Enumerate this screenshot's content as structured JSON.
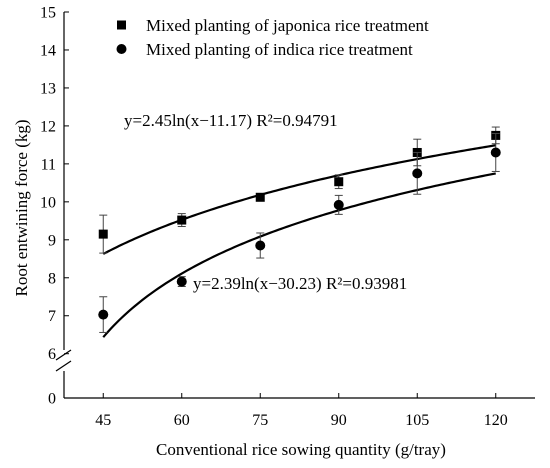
{
  "chart_data": {
    "type": "scatter",
    "xlabel": "Conventional rice sowing quantity (g/tray)",
    "ylabel": "Root entwining force (kg)",
    "x_ticks": [
      45,
      60,
      75,
      90,
      105,
      120
    ],
    "y_ticks": [
      0,
      6,
      7,
      8,
      9,
      10,
      11,
      12,
      13,
      14,
      15
    ],
    "xlim": [
      37.5,
      127.5
    ],
    "ylim_upper": [
      5.65,
      15
    ],
    "axis_break": [
      0,
      5.65
    ],
    "grid": false,
    "legend_position": "top-left",
    "series": [
      {
        "name": "Mixed planting of japonica rice treatment",
        "marker": "square",
        "x": [
          45,
          60,
          75,
          90,
          105,
          120
        ],
        "y": [
          9.15,
          9.52,
          10.12,
          10.53,
          11.3,
          11.75
        ],
        "error": [
          0.5,
          0.17,
          0.07,
          0.18,
          0.35,
          0.22
        ],
        "fit": {
          "a": 2.45,
          "c": 11.17,
          "equation": "y=2.45ln(x−11.17) R²=0.94791"
        }
      },
      {
        "name": "Mixed planting of indica rice treatment",
        "marker": "circle",
        "x": [
          45,
          60,
          75,
          90,
          105,
          120
        ],
        "y": [
          7.03,
          7.9,
          8.85,
          9.92,
          10.75,
          11.3
        ],
        "error": [
          0.47,
          0.13,
          0.33,
          0.25,
          0.55,
          0.5
        ],
        "fit": {
          "a": 2.39,
          "c": 30.23,
          "equation": "y=2.39ln(x−30.23) R²=0.93981"
        }
      }
    ]
  }
}
